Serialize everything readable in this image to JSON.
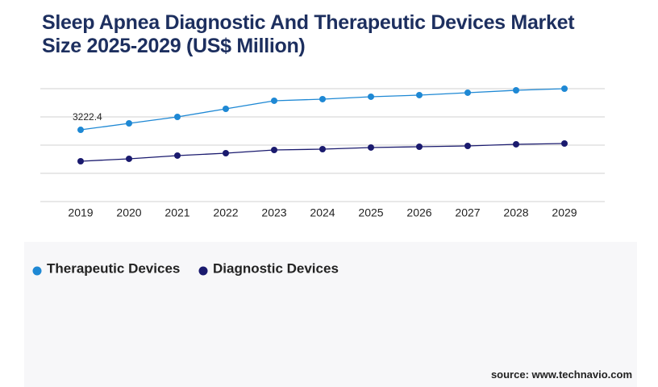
{
  "chart_data": {
    "type": "line",
    "title": "Sleep Apnea Diagnostic And Therapeutic Devices Market Size 2025-2029 (US$ Million)",
    "x": [
      "2019",
      "2020",
      "2021",
      "2022",
      "2023",
      "2024",
      "2025",
      "2026",
      "2027",
      "2028",
      "2029"
    ],
    "series": [
      {
        "name": "Therapeutic Devices",
        "color": "#1e88d4",
        "values": [
          3222.4,
          3513,
          3803,
          4165,
          4528,
          4600,
          4709,
          4781,
          4890,
          4998,
          5070
        ],
        "value_labels": [
          "3222.4",
          null,
          null,
          null,
          null,
          null,
          null,
          null,
          null,
          null,
          null
        ]
      },
      {
        "name": "Diagnostic Devices",
        "color": "#1a1a6e",
        "values": [
          1811,
          1920,
          2065,
          2173,
          2318,
          2354,
          2427,
          2463,
          2499,
          2572,
          2608
        ]
      }
    ],
    "ylim": [
      0,
      5070
    ],
    "yticks": [
      0,
      1267.5,
      2535,
      3802.5,
      5070
    ],
    "grid": true,
    "source": "source: www.technavio.com"
  }
}
